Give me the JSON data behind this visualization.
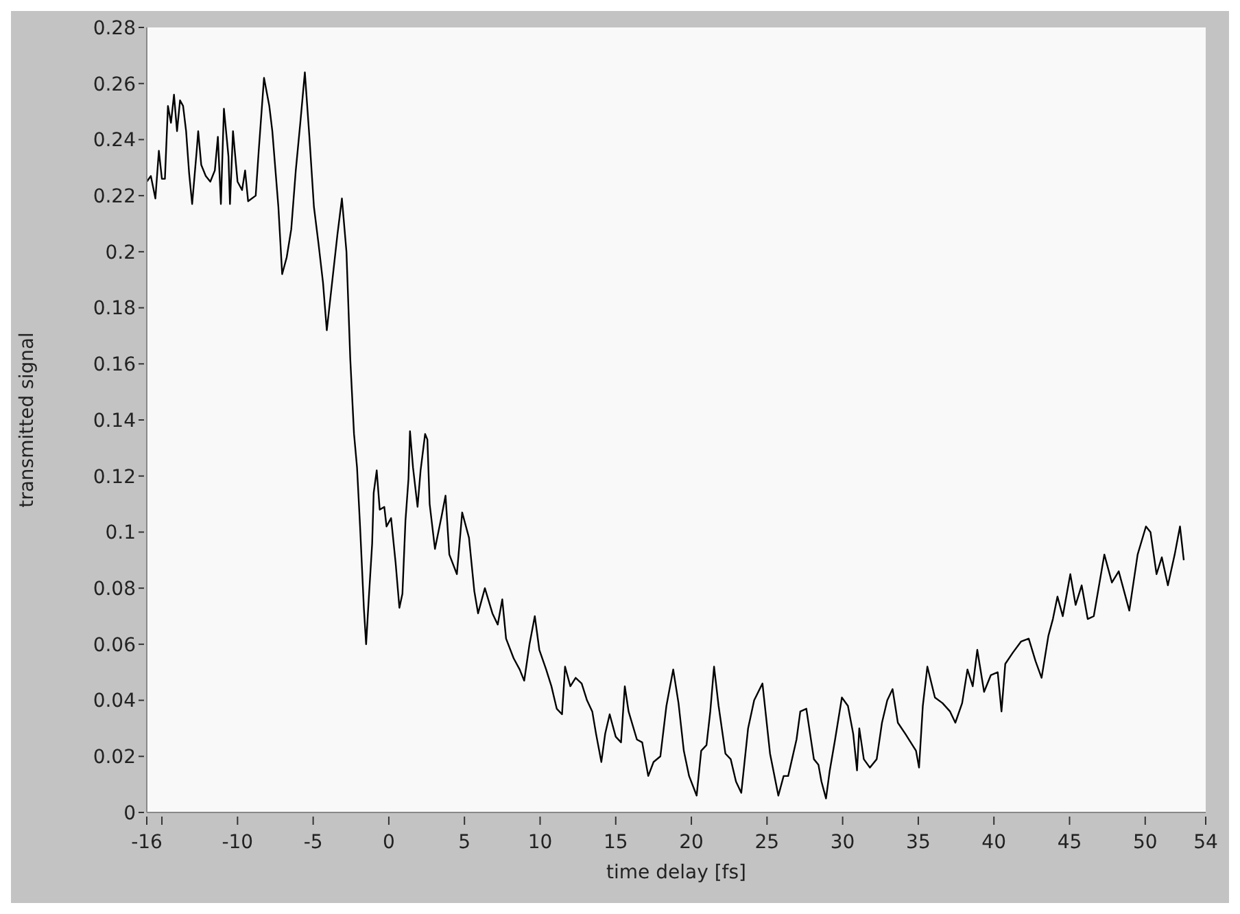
{
  "chart_data": {
    "type": "line",
    "xlabel": "time delay [fs]",
    "ylabel": "transmitted signal",
    "xlim": [
      -16,
      54
    ],
    "ylim": [
      0,
      0.28
    ],
    "xticks": [
      -16,
      {
        "value": -15,
        "label": null
      },
      -10,
      -5,
      0,
      5,
      10,
      15,
      20,
      25,
      30,
      35,
      40,
      45,
      50,
      54
    ],
    "yticks": [
      0,
      0.02,
      0.04,
      0.06,
      0.08,
      0.1,
      0.12,
      0.14,
      0.16,
      0.18,
      0.2,
      0.22,
      0.24,
      0.26,
      0.28
    ],
    "grid": false,
    "marker": "none",
    "line_style": "solid",
    "series": [
      {
        "color": "#000000",
        "x": [
          -16,
          -15.73,
          -15.43,
          -15.2,
          -15,
          -14.8,
          -14.6,
          -14.4,
          -14.2,
          -14,
          -13.8,
          -13.6,
          -13.4,
          -13.2,
          -13,
          -12.7,
          -12.6,
          -12.4,
          -12.1,
          -11.8,
          -11.5,
          -11.3,
          -11.1,
          -10.9,
          -10.6,
          -10.5,
          -10.3,
          -10,
          -9.7,
          -9.5,
          -9.3,
          -8.8,
          -8.6,
          -8.25,
          -7.9,
          -7.7,
          -7.3,
          -7.05,
          -6.75,
          -6.45,
          -6.15,
          -5.85,
          -5.55,
          -5.25,
          -4.95,
          -4.65,
          -4.35,
          -4.1,
          -3.75,
          -3.4,
          -3.1,
          -2.8,
          -2.55,
          -2.3,
          -2.1,
          -1.9,
          -1.65,
          -1.5,
          -1.35,
          -1.1,
          -1,
          -0.8,
          -0.6,
          -0.3,
          -0.15,
          0.15,
          0.45,
          0.7,
          0.9,
          1.1,
          1.3,
          1.4,
          1.6,
          1.9,
          2.1,
          2.4,
          2.55,
          2.7,
          3.05,
          3.5,
          3.75,
          4,
          4.5,
          4.85,
          5.3,
          5.65,
          5.9,
          6.35,
          6.85,
          7.2,
          7.5,
          7.75,
          8.25,
          8.65,
          8.95,
          9.3,
          9.65,
          9.95,
          10.4,
          10.75,
          11.1,
          11.45,
          11.65,
          12,
          12.35,
          12.75,
          13.1,
          13.45,
          13.7,
          14.05,
          14.3,
          14.6,
          15,
          15.35,
          15.6,
          15.85,
          16.4,
          16.75,
          17.15,
          17.5,
          17.95,
          18.35,
          18.8,
          19.15,
          19.5,
          19.85,
          20.35,
          20.65,
          21,
          21.25,
          21.5,
          21.8,
          22.25,
          22.6,
          22.95,
          23.3,
          23.75,
          24.15,
          24.7,
          25.2,
          25.75,
          26.1,
          26.4,
          26.95,
          27.2,
          27.6,
          28.1,
          28.4,
          28.6,
          28.9,
          29.15,
          29.5,
          29.95,
          30.35,
          30.7,
          30.95,
          31.1,
          31.4,
          31.8,
          32.25,
          32.6,
          32.95,
          33.3,
          33.65,
          34.15,
          34.5,
          34.85,
          35.05,
          35.3,
          35.6,
          36.1,
          36.6,
          37.1,
          37.45,
          37.9,
          38.25,
          38.6,
          38.9,
          39.35,
          39.8,
          40.25,
          40.5,
          40.75,
          41.25,
          41.8,
          42.3,
          42.75,
          43.15,
          43.6,
          43.9,
          44.2,
          44.55,
          45.05,
          45.4,
          45.8,
          46.2,
          46.6,
          47.3,
          47.8,
          48.25,
          48.95,
          49.5,
          50.05,
          50.35,
          50.75,
          51.1,
          51.5,
          51.95,
          52.3,
          52.55
        ],
        "values": [
          0.225,
          0.227,
          0.219,
          0.236,
          0.226,
          0.226,
          0.252,
          0.246,
          0.256,
          0.243,
          0.254,
          0.252,
          0.243,
          0.228,
          0.217,
          0.236,
          0.243,
          0.231,
          0.227,
          0.225,
          0.229,
          0.241,
          0.217,
          0.251,
          0.234,
          0.217,
          0.243,
          0.225,
          0.222,
          0.229,
          0.218,
          0.22,
          0.236,
          0.262,
          0.252,
          0.243,
          0.216,
          0.192,
          0.198,
          0.208,
          0.229,
          0.246,
          0.264,
          0.241,
          0.216,
          0.203,
          0.189,
          0.172,
          0.189,
          0.206,
          0.219,
          0.2,
          0.162,
          0.135,
          0.123,
          0.102,
          0.073,
          0.06,
          0.074,
          0.096,
          0.114,
          0.122,
          0.108,
          0.109,
          0.102,
          0.105,
          0.089,
          0.073,
          0.078,
          0.104,
          0.119,
          0.136,
          0.123,
          0.109,
          0.122,
          0.135,
          0.133,
          0.11,
          0.094,
          0.106,
          0.113,
          0.092,
          0.085,
          0.107,
          0.098,
          0.079,
          0.071,
          0.08,
          0.071,
          0.067,
          0.076,
          0.062,
          0.055,
          0.051,
          0.047,
          0.06,
          0.07,
          0.058,
          0.051,
          0.045,
          0.037,
          0.035,
          0.052,
          0.045,
          0.048,
          0.046,
          0.04,
          0.036,
          0.028,
          0.018,
          0.028,
          0.035,
          0.027,
          0.025,
          0.045,
          0.036,
          0.026,
          0.025,
          0.013,
          0.018,
          0.02,
          0.038,
          0.051,
          0.039,
          0.022,
          0.013,
          0.006,
          0.022,
          0.024,
          0.036,
          0.052,
          0.038,
          0.021,
          0.019,
          0.011,
          0.007,
          0.03,
          0.04,
          0.046,
          0.021,
          0.006,
          0.013,
          0.013,
          0.026,
          0.036,
          0.037,
          0.019,
          0.017,
          0.011,
          0.005,
          0.015,
          0.026,
          0.041,
          0.038,
          0.028,
          0.015,
          0.03,
          0.019,
          0.016,
          0.019,
          0.032,
          0.04,
          0.044,
          0.032,
          0.028,
          0.025,
          0.022,
          0.016,
          0.038,
          0.052,
          0.041,
          0.039,
          0.036,
          0.032,
          0.039,
          0.051,
          0.045,
          0.058,
          0.043,
          0.049,
          0.05,
          0.036,
          0.053,
          0.057,
          0.061,
          0.062,
          0.054,
          0.048,
          0.063,
          0.069,
          0.077,
          0.07,
          0.085,
          0.074,
          0.081,
          0.069,
          0.07,
          0.092,
          0.082,
          0.086,
          0.072,
          0.092,
          0.102,
          0.1,
          0.085,
          0.091,
          0.081,
          0.092,
          0.102,
          0.09
        ]
      }
    ]
  }
}
